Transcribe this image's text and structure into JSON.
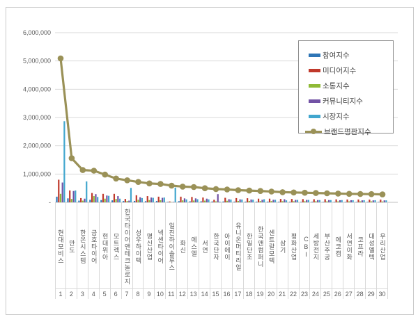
{
  "chart_data": {
    "type": "bar",
    "subtype": "grouped-bars-with-line-overlay",
    "title": "",
    "xlabel": "",
    "ylabel": "",
    "y_axis": {
      "min": 0,
      "max": 6000000,
      "gridline_interval": 1000000,
      "tick_labels": [
        "6,000,000",
        "5,000,000",
        "4,000,000",
        "3,000,000",
        "2,000,000",
        "1,000,000",
        "-"
      ],
      "grid": true
    },
    "ranks": [
      "1",
      "2",
      "3",
      "4",
      "5",
      "6",
      "7",
      "8",
      "9",
      "10",
      "11",
      "12",
      "13",
      "14",
      "15",
      "16",
      "17",
      "18",
      "19",
      "20",
      "21",
      "22",
      "23",
      "24",
      "25",
      "26",
      "27",
      "28",
      "29",
      "30"
    ],
    "categories": [
      "현대모비스",
      "만도",
      "한온시스템",
      "금호타이어",
      "현대위아",
      "모트렉스",
      "한국타이어앤테크놀로지",
      "성우하이텍",
      "명신산업",
      "넥센타이어",
      "일진하이솔루스",
      "화신",
      "에스엘",
      "서연",
      "한국단자",
      "아이에이",
      "유니온머티리얼",
      "한일단조",
      "한국앤컴퍼니",
      "센트랄모텍",
      "삼기",
      "평화산업",
      "CBI",
      "세방전지",
      "부산주공",
      "에코캡",
      "서연이화",
      "코프라",
      "대성엘텍",
      "우리산업"
    ],
    "series": [
      {
        "name": "참여지수",
        "type": "bar",
        "color": "#2e75b6",
        "values": [
          200000,
          140000,
          60000,
          90000,
          80000,
          70000,
          45000,
          50000,
          40000,
          45000,
          15000,
          40000,
          35000,
          35000,
          30000,
          30000,
          25000,
          25000,
          25000,
          25000,
          20000,
          20000,
          15000,
          20000,
          15000,
          15000,
          15000,
          15000,
          15000,
          15000
        ]
      },
      {
        "name": "미디어지수",
        "type": "bar",
        "color": "#c0392b",
        "values": [
          800000,
          420000,
          150000,
          330000,
          300000,
          300000,
          120000,
          250000,
          220000,
          200000,
          30000,
          200000,
          190000,
          170000,
          90000,
          160000,
          150000,
          145000,
          130000,
          130000,
          120000,
          120000,
          115000,
          110000,
          110000,
          105000,
          100000,
          100000,
          95000,
          95000
        ]
      },
      {
        "name": "소통지수",
        "type": "bar",
        "color": "#8fba36",
        "values": [
          300000,
          120000,
          60000,
          220000,
          130000,
          120000,
          45000,
          90000,
          80000,
          75000,
          10000,
          70000,
          65000,
          60000,
          35000,
          55000,
          50000,
          50000,
          45000,
          45000,
          40000,
          40000,
          40000,
          40000,
          35000,
          35000,
          35000,
          35000,
          35000,
          30000
        ]
      },
      {
        "name": "커뮤니티지수",
        "type": "bar",
        "color": "#7252a5",
        "values": [
          700000,
          400000,
          130000,
          290000,
          240000,
          220000,
          60000,
          180000,
          170000,
          160000,
          15000,
          140000,
          140000,
          130000,
          290000,
          110000,
          105000,
          100000,
          90000,
          90000,
          110000,
          85000,
          85000,
          80000,
          80000,
          75000,
          75000,
          70000,
          70000,
          70000
        ]
      },
      {
        "name": "시장지수",
        "type": "bar",
        "color": "#41a6ce",
        "values": [
          2870000,
          420000,
          740000,
          190000,
          230000,
          130000,
          510000,
          150000,
          160000,
          170000,
          520000,
          105000,
          110000,
          105000,
          25000,
          100000,
          100000,
          95000,
          110000,
          90000,
          70000,
          85000,
          85000,
          80000,
          80000,
          80000,
          75000,
          75000,
          75000,
          70000
        ]
      },
      {
        "name": "브랜드평판지수",
        "type": "line",
        "color": "#9a9157",
        "values": [
          5090000,
          1560000,
          1140000,
          1120000,
          980000,
          840000,
          780000,
          720000,
          670000,
          650000,
          590000,
          555000,
          540000,
          500000,
          470000,
          455000,
          430000,
          415000,
          400000,
          380000,
          360000,
          350000,
          340000,
          330000,
          320000,
          310000,
          300000,
          295000,
          290000,
          280000
        ]
      }
    ],
    "legend": {
      "position": "top-right",
      "entries": [
        "참여지수",
        "미디어지수",
        "소통지수",
        "커뮤니티지수",
        "시장지수",
        "브랜드평판지수"
      ]
    },
    "style": {
      "gridline_color": "#d9d9d9",
      "axis_line_color": "#bfbfbf",
      "tick_label_color": "#595959",
      "category_label_color": "#595959",
      "legend_text_color": "#404040",
      "frame_border_color": "#c9c9c9",
      "background": "#ffffff"
    }
  }
}
